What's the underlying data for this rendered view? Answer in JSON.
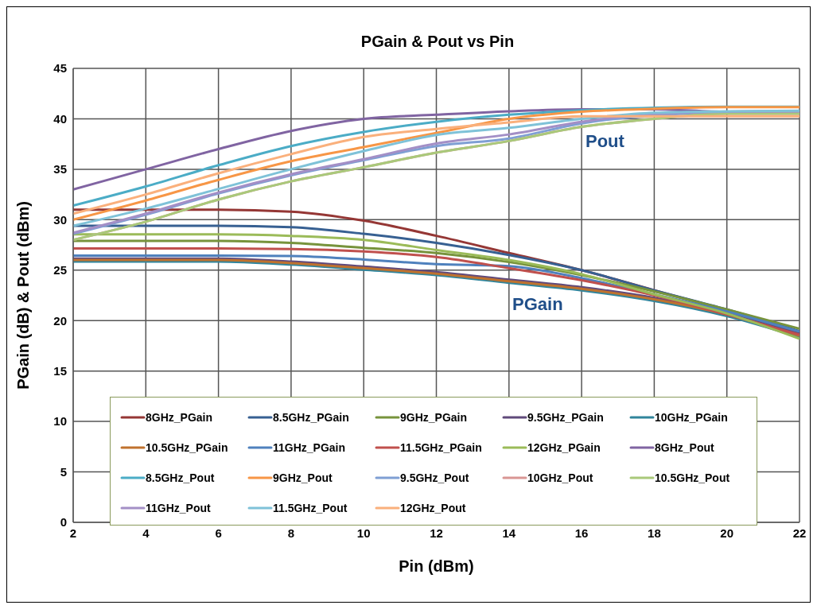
{
  "chart_data": {
    "type": "line",
    "title": "PGain & Pout vs Pin",
    "xlabel": "Pin (dBm)",
    "ylabel": "PGain (dB) & Pout (dBm)",
    "x": [
      2,
      4,
      6,
      8,
      10,
      12,
      14,
      16,
      18,
      20,
      22
    ],
    "series": [
      {
        "name": "8GHz_PGain",
        "color": "#953735",
        "values": [
          31.0,
          31.0,
          31.0,
          30.8,
          29.9,
          28.4,
          26.7,
          25.0,
          23.0,
          21.0,
          18.7
        ]
      },
      {
        "name": "8.5GHz_PGain",
        "color": "#376092",
        "values": [
          29.4,
          29.4,
          29.4,
          29.25,
          28.6,
          27.7,
          26.5,
          25.0,
          23.0,
          21.1,
          18.95
        ]
      },
      {
        "name": "9GHz_PGain",
        "color": "#77933c",
        "values": [
          27.9,
          27.9,
          27.9,
          27.7,
          27.2,
          26.7,
          25.8,
          24.5,
          22.9,
          21.1,
          19.2
        ]
      },
      {
        "name": "9.5GHz_PGain",
        "color": "#604a7b",
        "values": [
          26.15,
          26.15,
          26.15,
          25.85,
          25.35,
          24.8,
          24.05,
          23.3,
          22.25,
          20.75,
          18.65
        ]
      },
      {
        "name": "10GHz_PGain",
        "color": "#31859c",
        "values": [
          25.85,
          25.85,
          25.85,
          25.55,
          25.05,
          24.5,
          23.75,
          23.0,
          21.95,
          20.45,
          18.35
        ]
      },
      {
        "name": "10.5GHz_PGain",
        "color": "#c0722e",
        "values": [
          26.0,
          26.0,
          26.0,
          25.7,
          25.2,
          24.65,
          23.9,
          23.15,
          22.1,
          20.6,
          18.5
        ]
      },
      {
        "name": "11GHz_PGain",
        "color": "#4f81bd",
        "values": [
          26.45,
          26.45,
          26.45,
          26.4,
          26.05,
          25.6,
          25.4,
          24.2,
          22.6,
          20.9,
          18.9
        ]
      },
      {
        "name": "11.5GHz_PGain",
        "color": "#c0504d",
        "values": [
          27.15,
          27.15,
          27.15,
          27.1,
          26.85,
          26.3,
          25.2,
          24.0,
          22.5,
          20.6,
          18.6
        ]
      },
      {
        "name": "12GHz_PGain",
        "color": "#9bbb59",
        "values": [
          28.55,
          28.55,
          28.55,
          28.4,
          28.0,
          27.0,
          26.0,
          24.6,
          22.6,
          20.7,
          18.2
        ]
      },
      {
        "name": "8GHz_Pout",
        "color": "#8064a2",
        "values": [
          33.0,
          35.0,
          37.0,
          38.8,
          40.0,
          40.4,
          40.75,
          40.95,
          40.95,
          40.7,
          40.75
        ]
      },
      {
        "name": "8.5GHz_Pout",
        "color": "#4bacc6",
        "values": [
          31.4,
          33.3,
          35.4,
          37.3,
          38.7,
          39.7,
          40.4,
          40.85,
          41.1,
          41.2,
          41.2
        ]
      },
      {
        "name": "9GHz_Pout",
        "color": "#f79646",
        "values": [
          30.0,
          31.9,
          33.95,
          35.8,
          37.2,
          38.6,
          40.0,
          40.7,
          41.0,
          41.15,
          41.15
        ]
      },
      {
        "name": "9.5GHz_Pout",
        "color": "#7f9fd4",
        "values": [
          28.6,
          30.5,
          32.6,
          34.4,
          35.9,
          37.3,
          38.05,
          39.55,
          40.35,
          40.6,
          40.6
        ]
      },
      {
        "name": "10GHz_Pout",
        "color": "#d99694",
        "values": [
          28.0,
          29.8,
          32.0,
          33.8,
          35.2,
          36.65,
          37.8,
          39.2,
          40.0,
          40.5,
          40.5
        ]
      },
      {
        "name": "10.5GHz_Pout",
        "color": "#a9c97a",
        "values": [
          28.0,
          29.8,
          32.0,
          33.8,
          35.2,
          36.65,
          37.8,
          39.2,
          40.0,
          40.5,
          40.5
        ]
      },
      {
        "name": "11GHz_Pout",
        "color": "#a38fc6",
        "values": [
          28.7,
          30.6,
          32.7,
          34.5,
          36.0,
          37.55,
          38.45,
          39.7,
          40.5,
          40.7,
          40.75
        ]
      },
      {
        "name": "11.5GHz_Pout",
        "color": "#7fc2d8",
        "values": [
          29.4,
          31.1,
          33.05,
          35.0,
          36.8,
          38.4,
          39.1,
          40.0,
          40.6,
          40.75,
          40.8
        ]
      },
      {
        "name": "12GHz_Pout",
        "color": "#fab07c",
        "values": [
          30.6,
          32.5,
          34.6,
          36.5,
          38.2,
          39.0,
          39.65,
          40.25,
          40.25,
          40.25,
          40.25
        ]
      }
    ],
    "xlim": [
      2,
      22
    ],
    "xticks": [
      2,
      4,
      6,
      8,
      10,
      12,
      14,
      16,
      18,
      20,
      22
    ],
    "ylim": [
      0,
      45
    ],
    "yticks": [
      0,
      5,
      10,
      15,
      20,
      25,
      30,
      35,
      40,
      45
    ],
    "grid": true,
    "legend": "bottom",
    "marker": "none",
    "line_style": "solid",
    "annotations": [
      "Pout",
      "PGain"
    ]
  }
}
